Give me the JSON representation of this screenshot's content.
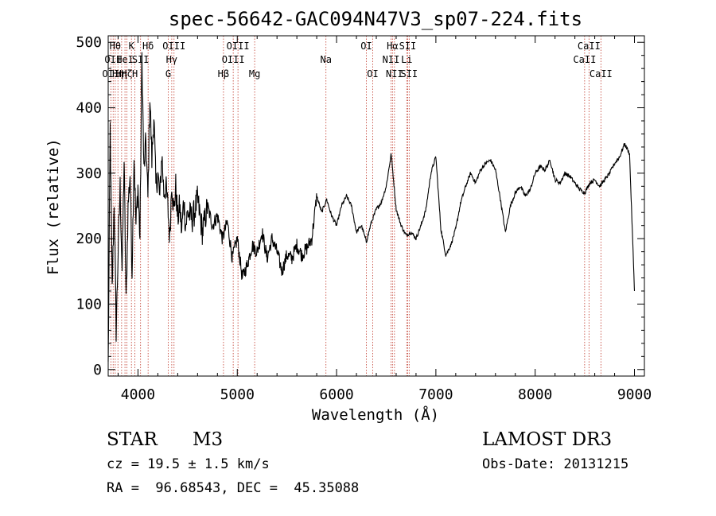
{
  "chart_data": {
    "type": "line",
    "title": "spec-56642-GAC094N47V3_sp07-224.fits",
    "xlabel": "Wavelength (Å)",
    "ylabel": "Flux (relative)",
    "xlim": [
      3700,
      9100
    ],
    "ylim": [
      -10,
      510
    ],
    "x_ticks": [
      4000,
      5000,
      6000,
      7000,
      8000,
      9000
    ],
    "y_ticks": [
      0,
      100,
      200,
      300,
      400,
      500
    ],
    "series": [
      {
        "name": "flux",
        "x": [
          3700,
          3720,
          3740,
          3760,
          3780,
          3800,
          3820,
          3840,
          3860,
          3880,
          3900,
          3920,
          3940,
          3960,
          3980,
          4000,
          4020,
          4040,
          4060,
          4080,
          4100,
          4120,
          4140,
          4160,
          4180,
          4200,
          4220,
          4240,
          4260,
          4280,
          4300,
          4320,
          4340,
          4360,
          4380,
          4400,
          4420,
          4440,
          4460,
          4480,
          4500,
          4550,
          4600,
          4650,
          4700,
          4750,
          4800,
          4850,
          4900,
          4950,
          5000,
          5050,
          5100,
          5150,
          5200,
          5250,
          5300,
          5350,
          5400,
          5450,
          5500,
          5550,
          5600,
          5650,
          5700,
          5750,
          5800,
          5850,
          5900,
          5950,
          6000,
          6050,
          6100,
          6150,
          6200,
          6250,
          6300,
          6350,
          6400,
          6450,
          6500,
          6550,
          6600,
          6650,
          6700,
          6750,
          6800,
          6850,
          6900,
          6950,
          7000,
          7050,
          7100,
          7150,
          7200,
          7250,
          7300,
          7350,
          7400,
          7450,
          7500,
          7550,
          7600,
          7650,
          7700,
          7750,
          7800,
          7850,
          7900,
          7950,
          8000,
          8050,
          8100,
          8150,
          8200,
          8250,
          8300,
          8350,
          8400,
          8450,
          8500,
          8550,
          8600,
          8650,
          8700,
          8750,
          8800,
          8850,
          8900,
          8950,
          9000
        ],
        "values": [
          5,
          370,
          120,
          260,
          60,
          180,
          280,
          150,
          320,
          100,
          250,
          300,
          150,
          330,
          220,
          280,
          200,
          480,
          300,
          350,
          260,
          420,
          320,
          390,
          280,
          300,
          260,
          330,
          270,
          280,
          250,
          200,
          290,
          240,
          280,
          230,
          250,
          210,
          260,
          220,
          240,
          230,
          260,
          210,
          250,
          220,
          235,
          200,
          225,
          170,
          200,
          140,
          160,
          190,
          180,
          210,
          170,
          200,
          180,
          150,
          175,
          170,
          190,
          175,
          185,
          200,
          265,
          240,
          260,
          235,
          220,
          250,
          265,
          250,
          210,
          220,
          195,
          225,
          245,
          255,
          280,
          330,
          245,
          220,
          205,
          210,
          200,
          220,
          245,
          300,
          325,
          215,
          175,
          190,
          215,
          255,
          280,
          300,
          285,
          305,
          315,
          320,
          305,
          260,
          210,
          250,
          270,
          280,
          265,
          275,
          300,
          310,
          305,
          320,
          290,
          285,
          300,
          295,
          285,
          275,
          270,
          285,
          290,
          280,
          290,
          300,
          315,
          325,
          345,
          330,
          120
        ]
      }
    ],
    "line_markers": [
      {
        "wl": 3727,
        "label": "OII",
        "row": 2
      },
      {
        "wl": 3750,
        "label": "OII",
        "row": 1
      },
      {
        "wl": 3771,
        "label": "Hθ",
        "row": 0
      },
      {
        "wl": 3798,
        "label": "Hη",
        "row": 2
      },
      {
        "wl": 3835,
        "label": "Hη",
        "row": 2
      },
      {
        "wl": 3869,
        "label": "HeI",
        "row": 1
      },
      {
        "wl": 3889,
        "label": "Hζ",
        "row": 2
      },
      {
        "wl": 3934,
        "label": "K",
        "row": 0
      },
      {
        "wl": 3969,
        "label": "H",
        "row": 2
      },
      {
        "wl": 4026,
        "label": "SII",
        "row": 1
      },
      {
        "wl": 4102,
        "label": "Hδ",
        "row": 0
      },
      {
        "wl": 4305,
        "label": "G",
        "row": 2
      },
      {
        "wl": 4340,
        "label": "Hγ",
        "row": 1
      },
      {
        "wl": 4363,
        "label": "OIII",
        "row": 0
      },
      {
        "wl": 4861,
        "label": "Hβ",
        "row": 2
      },
      {
        "wl": 4959,
        "label": "OIII",
        "row": 1
      },
      {
        "wl": 5007,
        "label": "OIII",
        "row": 0
      },
      {
        "wl": 5175,
        "label": "Mg",
        "row": 2
      },
      {
        "wl": 5893,
        "label": "Na",
        "row": 1
      },
      {
        "wl": 6300,
        "label": "OI",
        "row": 0
      },
      {
        "wl": 6364,
        "label": "OI",
        "row": 2
      },
      {
        "wl": 6548,
        "label": "NII",
        "row": 1
      },
      {
        "wl": 6563,
        "label": "Hα",
        "row": 0
      },
      {
        "wl": 6583,
        "label": "NII",
        "row": 2
      },
      {
        "wl": 6707,
        "label": "Li",
        "row": 1
      },
      {
        "wl": 6716,
        "label": "SII",
        "row": 0
      },
      {
        "wl": 6731,
        "label": "SII",
        "row": 2
      },
      {
        "wl": 8498,
        "label": "CaII",
        "row": 1
      },
      {
        "wl": 8542,
        "label": "CaII",
        "row": 0
      },
      {
        "wl": 8662,
        "label": "CaII",
        "row": 2
      }
    ]
  },
  "info": {
    "class_label": "STAR",
    "subclass_label": "M3",
    "survey": "LAMOST DR3",
    "cz_line": "cz = 19.5 ± 1.5 km/s",
    "obs_date_line": "Obs-Date: 20131215",
    "radec_line": "RA =  96.68543, DEC =  45.35088"
  }
}
